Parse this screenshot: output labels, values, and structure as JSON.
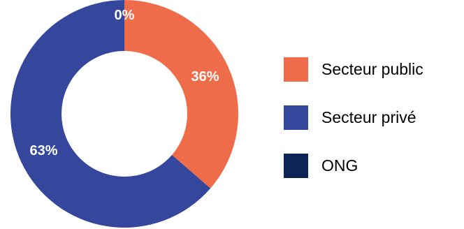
{
  "chart_data": {
    "type": "pie",
    "donut": true,
    "categories": [
      "Secteur public",
      "Secteur privé",
      "ONG"
    ],
    "values": [
      36,
      63,
      0
    ],
    "value_labels": [
      "36%",
      "63%",
      "0%"
    ],
    "colors": [
      "#ef6c4b",
      "#34479c",
      "#0d2456"
    ],
    "legend_position": "right",
    "title": ""
  }
}
